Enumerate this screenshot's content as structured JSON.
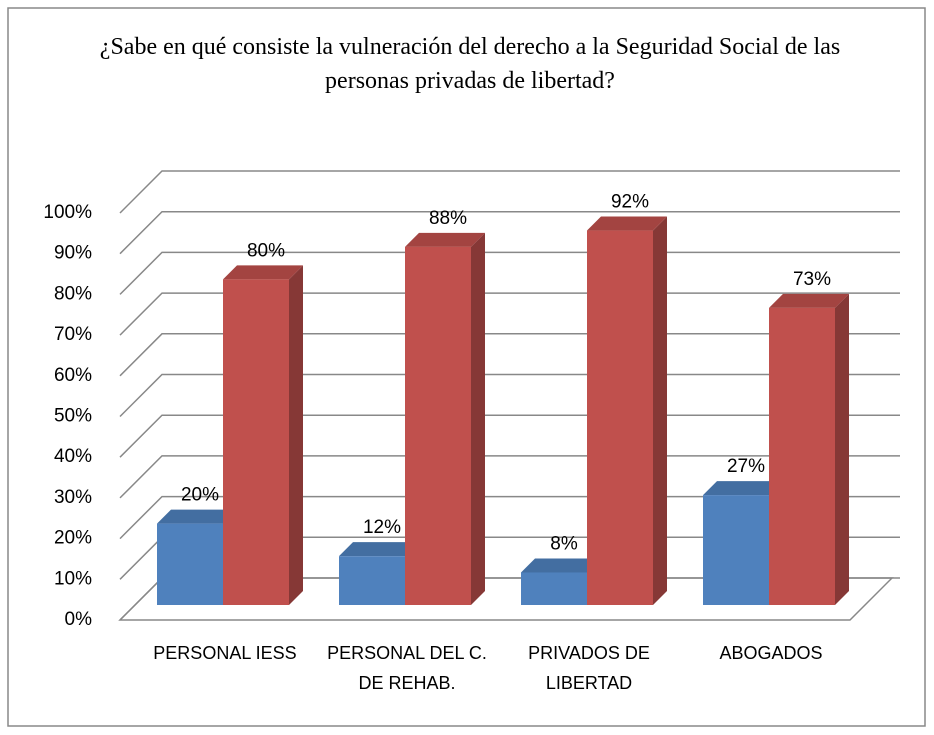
{
  "chart_data": {
    "type": "bar3d",
    "title": "¿Sabe en qué consiste la vulneración del derecho a la Seguridad Social de las personas privadas de libertad?",
    "categories": [
      "PERSONAL IESS",
      "PERSONAL DEL C. DE REHAB.",
      "PRIVADOS DE LIBERTAD",
      "ABOGADOS"
    ],
    "series": [
      {
        "color": "#4f81bd",
        "values": [
          20,
          12,
          8,
          27
        ],
        "value_labels": [
          "20%",
          "12%",
          "8%",
          "27%"
        ]
      },
      {
        "color": "#c0504d",
        "values": [
          80,
          88,
          92,
          73
        ],
        "value_labels": [
          "80%",
          "88%",
          "92%",
          "73%"
        ]
      }
    ],
    "ylim": [
      0,
      100
    ],
    "yticks": [
      {
        "value": 0,
        "label": "0%"
      },
      {
        "value": 10,
        "label": "10%"
      },
      {
        "value": 20,
        "label": "20%"
      },
      {
        "value": 30,
        "label": "30%"
      },
      {
        "value": 40,
        "label": "40%"
      },
      {
        "value": 50,
        "label": "50%"
      },
      {
        "value": 60,
        "label": "60%"
      },
      {
        "value": 70,
        "label": "70%"
      },
      {
        "value": 80,
        "label": "80%"
      },
      {
        "value": 90,
        "label": "90%"
      },
      {
        "value": 100,
        "label": "100%"
      }
    ],
    "grid": true
  }
}
